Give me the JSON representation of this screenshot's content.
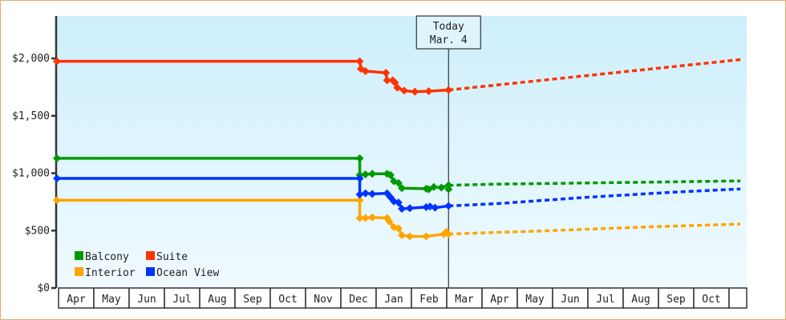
{
  "chart_data": {
    "type": "line",
    "title": "",
    "xlabel": "",
    "ylabel": "",
    "ylim": [
      0,
      2370
    ],
    "yticks": [
      0,
      500,
      1000,
      1500,
      2000
    ],
    "ytick_labels": [
      "$0",
      "$500",
      "$1,000",
      "$1,500",
      "$2,000"
    ],
    "x_months": [
      "Apr",
      "May",
      "Jun",
      "Jul",
      "Aug",
      "Sep",
      "Oct",
      "Nov",
      "Dec",
      "Jan",
      "Feb",
      "Mar",
      "Apr",
      "May",
      "Jun",
      "Jul",
      "Aug",
      "Sep",
      "Oct",
      ""
    ],
    "grid": false,
    "legend_placement": "bottom-left",
    "today_marker": {
      "line1": "Today",
      "line2": "Mar. 4",
      "date": "Mar 4"
    },
    "series": [
      {
        "name": "Balcony",
        "color": "#009900",
        "actual": [
          [
            "Apr 1",
            1130
          ],
          [
            "Dec 19",
            1130
          ],
          [
            "Dec 19",
            985
          ],
          [
            "Dec 24",
            990
          ],
          [
            "Dec 30",
            995
          ],
          [
            "Jan 12",
            995
          ],
          [
            "Jan 15",
            985
          ],
          [
            "Jan 18",
            930
          ],
          [
            "Jan 22",
            915
          ],
          [
            "Jan 25",
            870
          ],
          [
            "Feb 14",
            865
          ],
          [
            "Feb 16",
            860
          ],
          [
            "Feb 20",
            880
          ],
          [
            "Feb 26",
            875
          ],
          [
            "Mar 4",
            895
          ],
          [
            "Mar 4",
            860
          ]
        ],
        "forecast": [
          [
            "Mar 4",
            895
          ],
          [
            "Apr 15",
            905
          ],
          [
            "Jul 1",
            915
          ],
          [
            "Sep 15",
            925
          ],
          [
            "Nov 12",
            933
          ]
        ]
      },
      {
        "name": "Suite",
        "color": "#ff3300",
        "actual": [
          [
            "Apr 1",
            1975
          ],
          [
            "Dec 19",
            1975
          ],
          [
            "Dec 20",
            1910
          ],
          [
            "Dec 24",
            1890
          ],
          [
            "Jan 11",
            1875
          ],
          [
            "Jan 12",
            1810
          ],
          [
            "Jan 17",
            1810
          ],
          [
            "Jan 19",
            1790
          ],
          [
            "Jan 21",
            1745
          ],
          [
            "Jan 27",
            1720
          ],
          [
            "Feb 5",
            1710
          ],
          [
            "Feb 16",
            1715
          ],
          [
            "Mar 4",
            1725
          ]
        ],
        "forecast": [
          [
            "Mar 4",
            1725
          ],
          [
            "Nov 12",
            1990
          ]
        ]
      },
      {
        "name": "Interior",
        "color": "#ffa500",
        "actual": [
          [
            "Apr 1",
            765
          ],
          [
            "Dec 19",
            765
          ],
          [
            "Dec 19",
            610
          ],
          [
            "Dec 24",
            610
          ],
          [
            "Dec 30",
            615
          ],
          [
            "Jan 12",
            610
          ],
          [
            "Jan 14",
            580
          ],
          [
            "Jan 18",
            530
          ],
          [
            "Jan 22",
            520
          ],
          [
            "Jan 25",
            460
          ],
          [
            "Feb 1",
            450
          ],
          [
            "Feb 14",
            450
          ],
          [
            "Feb 28",
            470
          ],
          [
            "Mar 2",
            490
          ],
          [
            "Mar 4",
            470
          ]
        ],
        "forecast": [
          [
            "Mar 4",
            470
          ],
          [
            "Jun 1",
            500
          ],
          [
            "Sep 1",
            535
          ],
          [
            "Nov 12",
            557
          ]
        ]
      },
      {
        "name": "Ocean View",
        "color": "#0033ff",
        "actual": [
          [
            "Apr 1",
            955
          ],
          [
            "Dec 19",
            955
          ],
          [
            "Dec 19",
            815
          ],
          [
            "Dec 24",
            825
          ],
          [
            "Dec 30",
            820
          ],
          [
            "Jan 12",
            825
          ],
          [
            "Jan 15",
            790
          ],
          [
            "Jan 18",
            755
          ],
          [
            "Jan 22",
            745
          ],
          [
            "Jan 25",
            690
          ],
          [
            "Feb 1",
            695
          ],
          [
            "Feb 14",
            705
          ],
          [
            "Feb 17",
            710
          ],
          [
            "Feb 21",
            700
          ],
          [
            "Mar 4",
            715
          ]
        ],
        "forecast": [
          [
            "Mar 4",
            715
          ],
          [
            "Apr 15",
            735
          ],
          [
            "Jul 1",
            790
          ],
          [
            "Sep 15",
            835
          ],
          [
            "Nov 12",
            863
          ]
        ]
      }
    ]
  }
}
